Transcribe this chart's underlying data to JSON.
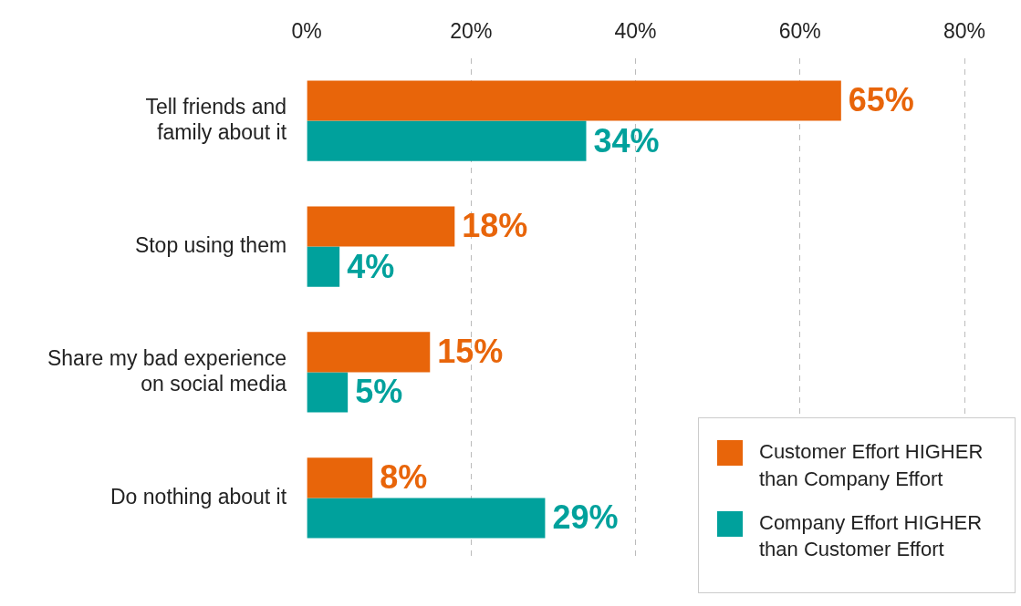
{
  "chart_data": {
    "type": "bar",
    "orientation": "horizontal",
    "categories": [
      "Tell friends and\nfamily about it",
      "Stop using them",
      "Share my bad experience\non social media",
      "Do nothing about it"
    ],
    "series": [
      {
        "name": "Customer Effort HIGHER than Company Effort",
        "color": "#e8650a",
        "values": [
          65,
          18,
          15,
          8
        ],
        "value_labels": [
          "65%",
          "18%",
          "15%",
          "8%"
        ]
      },
      {
        "name": "Company Effort HIGHER than Customer Effort",
        "color": "#00a19c",
        "values": [
          34,
          4,
          5,
          29
        ],
        "value_labels": [
          "34%",
          "4%",
          "5%",
          "29%"
        ]
      }
    ],
    "xlim": [
      0,
      80
    ],
    "xticks": [
      {
        "value": 0,
        "label": "0%"
      },
      {
        "value": 20,
        "label": "20%"
      },
      {
        "value": 40,
        "label": "40%"
      },
      {
        "value": 60,
        "label": "60%"
      },
      {
        "value": 80,
        "label": "80%"
      }
    ],
    "grid": "x",
    "legend": "bottom right"
  }
}
